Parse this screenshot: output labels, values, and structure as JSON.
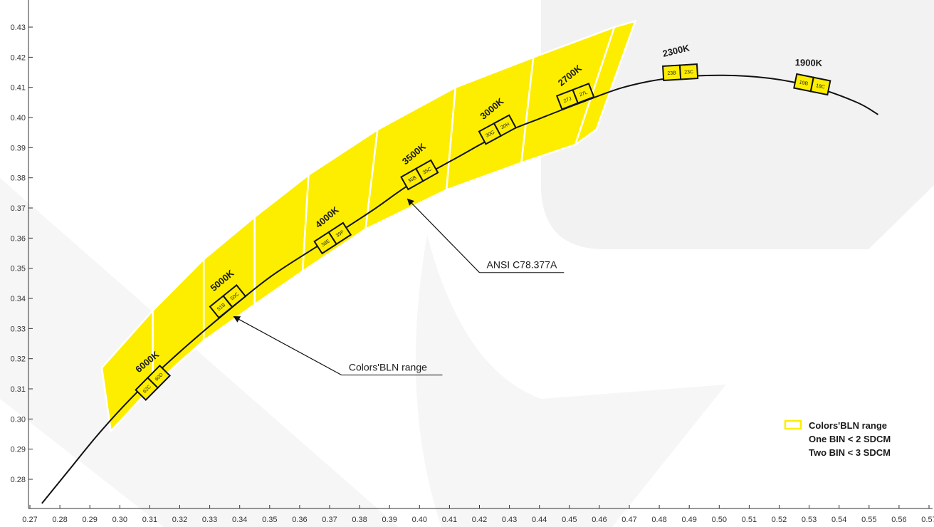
{
  "chart_data": {
    "type": "scatter",
    "title": "",
    "xlabel": "",
    "ylabel": "",
    "xlim": [
      0.27,
      0.57
    ],
    "ylim": [
      0.271,
      0.437
    ],
    "grid": false,
    "x_ticks": [
      "0.27",
      "0.28",
      "0.29",
      "0.30",
      "0.31",
      "0.32",
      "0.33",
      "0.34",
      "0.35",
      "0.36",
      "0.37",
      "0.38",
      "0.39",
      "0.40",
      "0.41",
      "0.42",
      "0.43",
      "0.44",
      "0.45",
      "0.46",
      "0.47",
      "0.48",
      "0.49",
      "0.50",
      "0.51",
      "0.52",
      "0.53",
      "0.54",
      "0.55",
      "0.56",
      "0.57"
    ],
    "y_ticks": [
      "0.28",
      "0.29",
      "0.30",
      "0.31",
      "0.32",
      "0.33",
      "0.34",
      "0.35",
      "0.36",
      "0.37",
      "0.38",
      "0.39",
      "0.40",
      "0.41",
      "0.42",
      "0.43"
    ],
    "planckian_locus": {
      "x": [
        0.274,
        0.283,
        0.292,
        0.301,
        0.311,
        0.322,
        0.335,
        0.35,
        0.367,
        0.384,
        0.397,
        0.413,
        0.426,
        0.441,
        0.454,
        0.468,
        0.483,
        0.5,
        0.517,
        0.532,
        0.546,
        0.553
      ],
      "y": [
        0.272,
        0.283,
        0.294,
        0.304,
        0.314,
        0.324,
        0.335,
        0.347,
        0.358,
        0.369,
        0.378,
        0.387,
        0.394,
        0.4,
        0.405,
        0.41,
        0.413,
        0.414,
        0.413,
        0.41,
        0.405,
        0.401
      ]
    },
    "ansi_quadrangles": [
      {
        "cct": "6000K",
        "points": [
          [
            0.294,
            0.317
          ],
          [
            0.311,
            0.336
          ],
          [
            0.311,
            0.311
          ],
          [
            0.297,
            0.296
          ]
        ]
      },
      {
        "cct": "5000K",
        "points": [
          [
            0.311,
            0.336
          ],
          [
            0.328,
            0.353
          ],
          [
            0.328,
            0.326
          ],
          [
            0.311,
            0.311
          ]
        ]
      },
      {
        "cct": "",
        "points": [
          [
            0.328,
            0.353
          ],
          [
            0.345,
            0.367
          ],
          [
            0.345,
            0.338
          ],
          [
            0.328,
            0.326
          ]
        ]
      },
      {
        "cct": "",
        "points": [
          [
            0.345,
            0.367
          ],
          [
            0.363,
            0.381
          ],
          [
            0.361,
            0.349
          ],
          [
            0.345,
            0.338
          ]
        ]
      },
      {
        "cct": "4000K",
        "points": [
          [
            0.363,
            0.381
          ],
          [
            0.386,
            0.396
          ],
          [
            0.382,
            0.363
          ],
          [
            0.361,
            0.349
          ]
        ]
      },
      {
        "cct": "3500K",
        "points": [
          [
            0.386,
            0.396
          ],
          [
            0.412,
            0.41
          ],
          [
            0.409,
            0.376
          ],
          [
            0.382,
            0.363
          ]
        ]
      },
      {
        "cct": "3000K",
        "points": [
          [
            0.412,
            0.41
          ],
          [
            0.438,
            0.42
          ],
          [
            0.434,
            0.385
          ],
          [
            0.409,
            0.376
          ]
        ]
      },
      {
        "cct": "2700K",
        "points": [
          [
            0.438,
            0.42
          ],
          [
            0.465,
            0.43
          ],
          [
            0.452,
            0.391
          ],
          [
            0.434,
            0.385
          ]
        ]
      },
      {
        "cct": "",
        "points": [
          [
            0.465,
            0.43
          ],
          [
            0.472,
            0.432
          ],
          [
            0.459,
            0.396
          ],
          [
            0.452,
            0.391
          ]
        ]
      }
    ],
    "bins": [
      {
        "cct": "6000K",
        "labels": [
          "62C",
          "60D"
        ],
        "x": 0.311,
        "y": 0.312
      },
      {
        "cct": "5000K",
        "labels": [
          "51B",
          "50C"
        ],
        "x": 0.336,
        "y": 0.339
      },
      {
        "cct": "4000K",
        "labels": [
          "39E",
          "39F"
        ],
        "x": 0.371,
        "y": 0.36
      },
      {
        "cct": "3500K",
        "labels": [
          "35B",
          "35C"
        ],
        "x": 0.4,
        "y": 0.381
      },
      {
        "cct": "3000K",
        "labels": [
          "30G",
          "30H"
        ],
        "x": 0.426,
        "y": 0.396
      },
      {
        "cct": "2700K",
        "labels": [
          "27J",
          "27L"
        ],
        "x": 0.452,
        "y": 0.407
      },
      {
        "cct": "2300K",
        "labels": [
          "23B",
          "23C"
        ],
        "x": 0.487,
        "y": 0.415
      },
      {
        "cct": "1900K",
        "labels": [
          "19B",
          "18C"
        ],
        "x": 0.531,
        "y": 0.411
      }
    ],
    "annotations": [
      {
        "text": "ANSI C78.377A",
        "arrow_to": [
          0.396,
          0.373
        ],
        "text_at": [
          0.42,
          0.35
        ]
      },
      {
        "text": "Colors'BLN range",
        "arrow_to": [
          0.338,
          0.334
        ],
        "text_at": [
          0.374,
          0.316
        ]
      }
    ],
    "legend": {
      "position": "bottom-right",
      "lines": [
        "Colors'BLN range",
        "One BIN < 2 SDCM",
        "Two BIN < 3 SDCM"
      ]
    },
    "colors": {
      "ansi_fill": "#fdee00",
      "bin_fill": "#fdee00",
      "locus": "#111111",
      "axis": "#333333",
      "watermark": "#f2f2f2"
    }
  }
}
